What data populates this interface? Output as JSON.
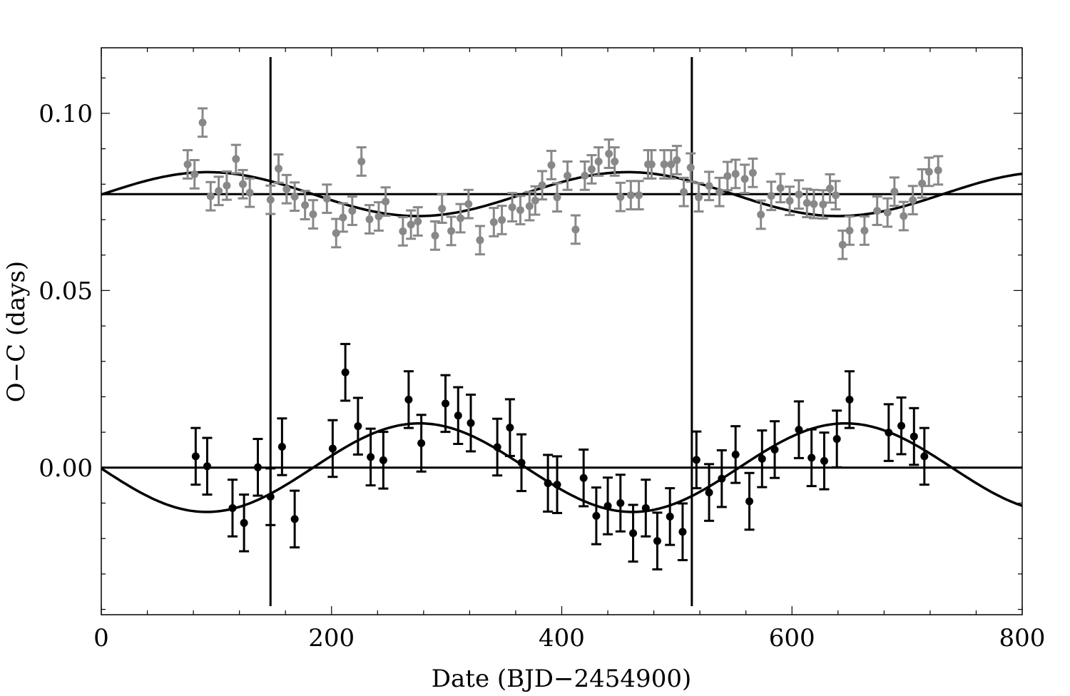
{
  "chart_data": {
    "type": "scatter",
    "title": "",
    "xlabel": "Date (BJD−2454900)",
    "ylabel": "O−C (days)",
    "xlim": [
      0,
      800
    ],
    "ylim": [
      -0.0415,
      0.1185
    ],
    "xticks": [
      0,
      200,
      400,
      600,
      800
    ],
    "xtick_labels": [
      "0",
      "200",
      "400",
      "600",
      "800"
    ],
    "yticks": [
      0.0,
      0.05,
      0.1
    ],
    "ytick_labels": [
      "0.00",
      "0.05",
      "0.10"
    ],
    "grid": false,
    "vertical_lines": [
      147,
      513
    ],
    "horizontal_lines": [
      0.0,
      0.0772
    ],
    "series": [
      {
        "color": "#888888",
        "error": 0.004,
        "fit": {
          "offset": 0.0772,
          "amplitude": 0.0062,
          "period": 365,
          "phase_x": 1.18,
          "range": [
            0,
            800
          ]
        },
        "x": [
          75,
          81,
          88,
          95,
          102,
          109,
          117,
          123,
          129,
          147,
          154,
          161,
          168,
          177,
          184,
          196,
          204,
          210,
          218,
          226,
          233,
          241,
          247,
          262,
          269,
          275,
          290,
          296,
          304,
          312,
          319,
          329,
          341,
          348,
          357,
          364,
          372,
          377,
          383,
          391,
          396,
          405,
          412,
          420,
          426,
          432,
          441,
          446,
          451,
          460,
          467,
          475,
          478,
          489,
          495,
          500,
          506,
          512,
          519,
          528,
          537,
          544,
          551,
          559,
          566,
          573,
          582,
          590,
          598,
          606,
          613,
          619,
          627,
          633,
          638,
          644,
          650,
          663,
          674,
          683,
          689,
          697,
          705,
          713,
          719,
          727
        ],
        "y": [
          0.0856,
          0.0828,
          0.0974,
          0.0766,
          0.0781,
          0.0796,
          0.0871,
          0.08,
          0.0776,
          0.0756,
          0.0844,
          0.0786,
          0.0765,
          0.0741,
          0.0715,
          0.0759,
          0.0662,
          0.0706,
          0.0725,
          0.0864,
          0.0701,
          0.0709,
          0.0751,
          0.0667,
          0.0686,
          0.0695,
          0.0655,
          0.0731,
          0.0668,
          0.0704,
          0.0744,
          0.0642,
          0.0693,
          0.0699,
          0.0735,
          0.0727,
          0.0738,
          0.0754,
          0.0797,
          0.0854,
          0.0763,
          0.0824,
          0.0672,
          0.0824,
          0.0842,
          0.0864,
          0.0886,
          0.0864,
          0.0764,
          0.0769,
          0.0769,
          0.0856,
          0.0856,
          0.0856,
          0.0856,
          0.0868,
          0.0778,
          0.0847,
          0.0763,
          0.0795,
          0.0778,
          0.0823,
          0.0829,
          0.0815,
          0.0832,
          0.0714,
          0.0767,
          0.0789,
          0.0753,
          0.0771,
          0.0747,
          0.0744,
          0.0743,
          0.0788,
          0.0769,
          0.0629,
          0.0669,
          0.0669,
          0.0725,
          0.072,
          0.0779,
          0.071,
          0.0755,
          0.0802,
          0.0835,
          0.0839
        ]
      },
      {
        "color": "#000000",
        "error": 0.008,
        "fit": {
          "offset": 0.0,
          "amplitude": 0.0125,
          "period": 370,
          "phase_x": 184,
          "range": [
            0,
            800
          ]
        },
        "x": [
          82,
          92,
          114,
          124,
          136,
          147,
          157,
          168,
          201,
          212,
          223,
          234,
          245,
          267,
          278,
          299,
          310,
          321,
          344,
          355,
          365,
          388,
          396,
          419,
          430,
          440,
          451,
          462,
          473,
          483,
          494,
          505,
          517,
          528,
          539,
          551,
          563,
          574,
          585,
          606,
          617,
          628,
          639,
          650,
          684,
          695,
          706,
          715
        ],
        "y": [
          0.0032,
          0.0004,
          -0.0114,
          -0.0156,
          0.0001,
          -0.0082,
          0.0059,
          -0.0145,
          0.0054,
          0.0269,
          0.0117,
          0.003,
          0.0021,
          0.0192,
          0.0069,
          0.0181,
          0.0147,
          0.0126,
          0.0058,
          0.0113,
          0.0014,
          -0.0044,
          -0.0048,
          -0.0029,
          -0.0136,
          -0.0108,
          -0.01,
          -0.0185,
          -0.0114,
          -0.0207,
          -0.0138,
          -0.0181,
          0.0022,
          -0.007,
          -0.0031,
          0.0037,
          -0.0095,
          0.0025,
          0.0051,
          0.0107,
          0.0028,
          0.0019,
          0.0081,
          0.0192,
          0.0099,
          0.0118,
          0.0088,
          0.0032
        ]
      }
    ]
  }
}
